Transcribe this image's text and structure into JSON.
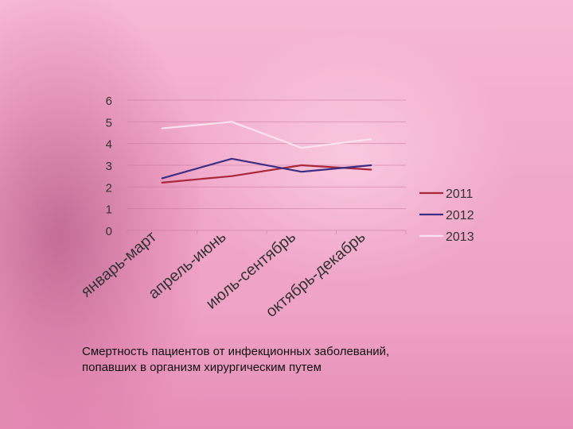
{
  "caption": {
    "line1": "Смертность пациентов от инфекционных заболеваний,",
    "line2": "попавших в организм хирургическим путем"
  },
  "chart_data": {
    "type": "line",
    "categories": [
      "январь-март",
      "апрель-июнь",
      "июль-сентябрь",
      "октябрь-декабрь"
    ],
    "series": [
      {
        "name": "2011",
        "values": [
          2.2,
          2.5,
          3.0,
          2.8
        ],
        "color": "#a8283c"
      },
      {
        "name": "2012",
        "values": [
          2.4,
          3.3,
          2.7,
          3.0
        ],
        "color": "#3f2d82"
      },
      {
        "name": "2013",
        "values": [
          4.7,
          5.0,
          3.8,
          4.2
        ],
        "color": "#fbe2ef"
      }
    ],
    "yticks": [
      "0",
      "1",
      "2",
      "3",
      "4",
      "5",
      "6"
    ],
    "ylim": [
      0,
      6
    ],
    "grid": true,
    "legend_position": "right"
  }
}
